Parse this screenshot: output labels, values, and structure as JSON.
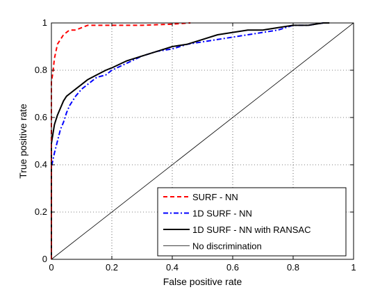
{
  "chart_data": {
    "type": "line",
    "xlabel": "False positive rate",
    "ylabel": "True positive rate",
    "xlim": [
      0,
      1
    ],
    "ylim": [
      0,
      1
    ],
    "xticks": [
      "0",
      "0.2",
      "0.4",
      "0.6",
      "0.8",
      "1"
    ],
    "yticks": [
      "0",
      "0.2",
      "0.4",
      "0.6",
      "0.8",
      "1"
    ],
    "grid": true,
    "legend_position": "bottom-right",
    "series": [
      {
        "name": "SURF - NN",
        "color": "#ff0000",
        "style": "dashed",
        "x": [
          0,
          0,
          0.005,
          0.01,
          0.015,
          0.02,
          0.03,
          0.04,
          0.06,
          0.08,
          0.1,
          0.12,
          0.15,
          0.2,
          0.3,
          0.4,
          0.46
        ],
        "y": [
          0,
          0.75,
          0.79,
          0.85,
          0.88,
          0.91,
          0.93,
          0.95,
          0.97,
          0.97,
          0.98,
          0.99,
          0.99,
          0.99,
          0.99,
          0.995,
          1.0
        ]
      },
      {
        "name": "1D SURF - NN",
        "color": "#0000ff",
        "style": "dashdot",
        "x": [
          0,
          0,
          0.005,
          0.01,
          0.02,
          0.03,
          0.04,
          0.05,
          0.06,
          0.08,
          0.1,
          0.12,
          0.15,
          0.18,
          0.2,
          0.25,
          0.3,
          0.35,
          0.4,
          0.45,
          0.5,
          0.55,
          0.6,
          0.65,
          0.7,
          0.75,
          0.8,
          0.85,
          0.9,
          0.92
        ],
        "y": [
          0,
          0.39,
          0.42,
          0.45,
          0.5,
          0.55,
          0.58,
          0.62,
          0.65,
          0.69,
          0.72,
          0.74,
          0.77,
          0.78,
          0.8,
          0.83,
          0.86,
          0.88,
          0.89,
          0.91,
          0.92,
          0.93,
          0.94,
          0.95,
          0.96,
          0.97,
          0.99,
          0.99,
          1.0,
          1.0
        ]
      },
      {
        "name": "1D SURF - NN with RANSAC",
        "color": "#000000",
        "style": "solid",
        "x": [
          0,
          0,
          0.005,
          0.01,
          0.02,
          0.03,
          0.04,
          0.05,
          0.06,
          0.08,
          0.1,
          0.12,
          0.15,
          0.18,
          0.2,
          0.25,
          0.3,
          0.35,
          0.4,
          0.45,
          0.5,
          0.55,
          0.6,
          0.65,
          0.7,
          0.75,
          0.8,
          0.85,
          0.9,
          0.92
        ],
        "y": [
          0,
          0.49,
          0.53,
          0.57,
          0.61,
          0.64,
          0.67,
          0.69,
          0.7,
          0.72,
          0.74,
          0.76,
          0.78,
          0.8,
          0.81,
          0.84,
          0.86,
          0.88,
          0.9,
          0.91,
          0.93,
          0.95,
          0.96,
          0.97,
          0.97,
          0.98,
          0.99,
          0.99,
          1.0,
          1.0
        ]
      },
      {
        "name": "No discrimination",
        "color": "#000000",
        "style": "thin",
        "x": [
          0,
          1
        ],
        "y": [
          0,
          1
        ]
      }
    ]
  }
}
